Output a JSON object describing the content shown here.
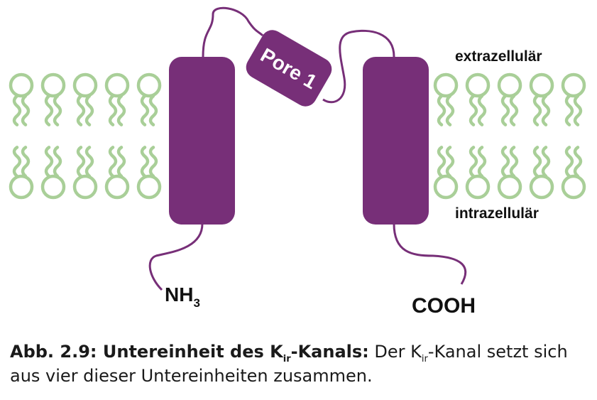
{
  "colors": {
    "protein": "#772f78",
    "lipid": "#a9cf98",
    "text": "#111111"
  },
  "labels": {
    "pore": "Pore 1",
    "extracellular": "extrazellulär",
    "intracellular": "intrazellulär",
    "n_terminus_main": "NH",
    "n_terminus_sub": "3",
    "c_terminus": "COOH"
  },
  "caption": {
    "bold_prefix": "Abb. 2.9: Untereinheit des K",
    "bold_sub": "ir",
    "bold_suffix": "-Kanals:",
    "text_prefix": " Der K",
    "text_sub": "ir",
    "text_suffix": "-Kanal setzt sich aus vier dieser Untereinheiten zusammen."
  }
}
